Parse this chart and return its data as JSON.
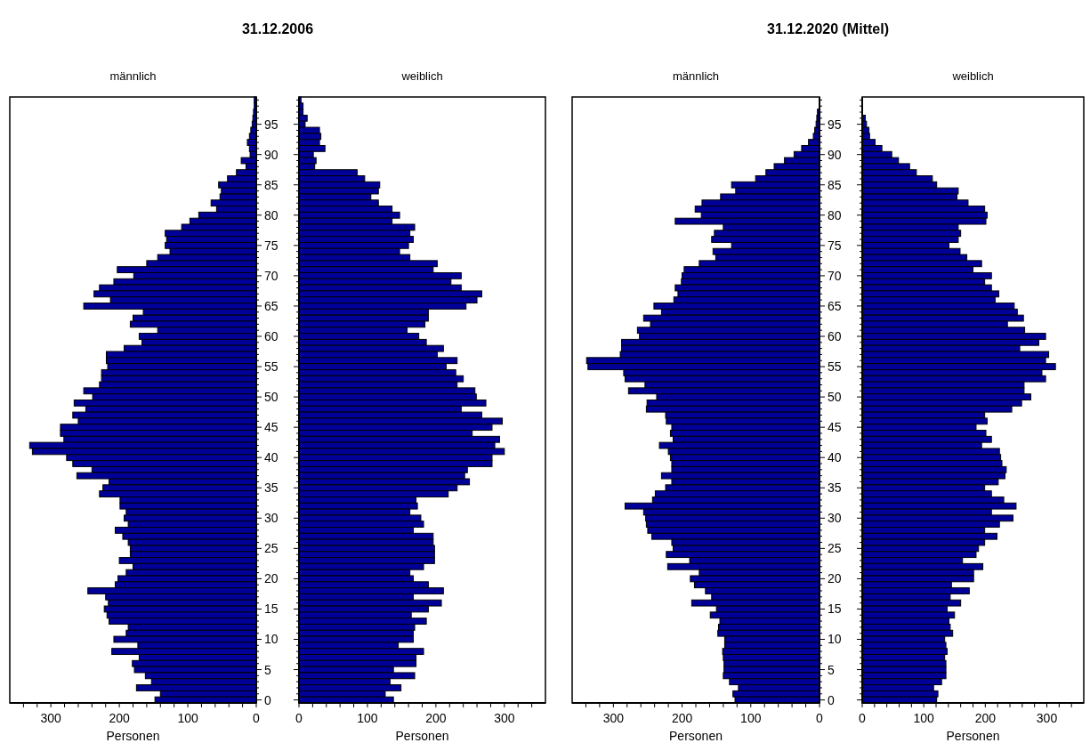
{
  "chart_data": [
    {
      "type": "bar",
      "orientation": "horizontal",
      "title": "31.12.2006",
      "subtitle": "männlich",
      "xlabel": "Personen",
      "color": "#000099",
      "xlim": [
        360,
        0
      ],
      "xticks": [
        0,
        {
          "value": 20,
          "label": null
        },
        {
          "value": 40,
          "label": null
        },
        {
          "value": 60,
          "label": null
        },
        {
          "value": 80,
          "label": null
        },
        100,
        {
          "value": 120,
          "label": null
        },
        {
          "value": 140,
          "label": null
        },
        {
          "value": 160,
          "label": null
        },
        {
          "value": 180,
          "label": null
        },
        200,
        {
          "value": 220,
          "label": null
        },
        {
          "value": 240,
          "label": null
        },
        {
          "value": 260,
          "label": null
        },
        {
          "value": 280,
          "label": null
        },
        300,
        {
          "value": 320,
          "label": null
        },
        {
          "value": 340,
          "label": null
        }
      ],
      "categories": [
        null,
        null,
        null,
        null,
        "95",
        null,
        null,
        null,
        null,
        "90",
        null,
        null,
        null,
        null,
        "85",
        null,
        null,
        null,
        null,
        "80",
        null,
        null,
        null,
        null,
        "75",
        null,
        null,
        null,
        null,
        "70",
        null,
        null,
        null,
        null,
        "65",
        null,
        null,
        null,
        null,
        "60",
        null,
        null,
        null,
        null,
        "55",
        null,
        null,
        null,
        null,
        "50",
        null,
        null,
        null,
        null,
        "45",
        null,
        null,
        null,
        null,
        "40",
        null,
        null,
        null,
        null,
        "35",
        null,
        null,
        null,
        null,
        "30",
        null,
        null,
        null,
        null,
        "25",
        null,
        null,
        null,
        null,
        "20",
        null,
        null,
        null,
        null,
        "15",
        null,
        null,
        null,
        null,
        "10",
        null,
        null,
        null,
        null,
        "5",
        null,
        null,
        null,
        null,
        "0"
      ],
      "values": [
        3,
        3,
        4,
        5,
        6,
        8,
        10,
        13,
        10,
        9,
        22,
        15,
        29,
        42,
        55,
        51,
        53,
        66,
        58,
        84,
        97,
        109,
        133,
        131,
        133,
        126,
        144,
        160,
        203,
        179,
        208,
        229,
        237,
        213,
        252,
        165,
        180,
        184,
        144,
        171,
        167,
        193,
        219,
        219,
        217,
        226,
        226,
        229,
        252,
        239,
        266,
        249,
        268,
        260,
        286,
        286,
        281,
        331,
        327,
        277,
        268,
        240,
        262,
        215,
        224,
        229,
        199,
        199,
        190,
        193,
        187,
        206,
        195,
        187,
        184,
        184,
        200,
        180,
        190,
        202,
        206,
        246,
        220,
        216,
        222,
        218,
        215,
        187,
        190,
        208,
        173,
        211,
        171,
        181,
        178,
        162,
        153,
        175,
        140,
        148
      ]
    },
    {
      "type": "bar",
      "orientation": "horizontal",
      "subtitle": "weiblich",
      "xlabel": "Personen",
      "color": "#000099",
      "xlim": [
        0,
        360
      ],
      "tick_labels": "x",
      "xticks": [
        0,
        {
          "value": 20,
          "label": null
        },
        {
          "value": 40,
          "label": null
        },
        {
          "value": 60,
          "label": null
        },
        {
          "value": 80,
          "label": null
        },
        100,
        {
          "value": 120,
          "label": null
        },
        {
          "value": 140,
          "label": null
        },
        {
          "value": 160,
          "label": null
        },
        {
          "value": 180,
          "label": null
        },
        200,
        {
          "value": 220,
          "label": null
        },
        {
          "value": 240,
          "label": null
        },
        {
          "value": 260,
          "label": null
        },
        {
          "value": 280,
          "label": null
        },
        300,
        {
          "value": 320,
          "label": null
        },
        {
          "value": 340,
          "label": null
        }
      ],
      "categories": [
        null,
        null,
        null,
        null,
        "95",
        null,
        null,
        null,
        null,
        "90",
        null,
        null,
        null,
        null,
        "85",
        null,
        null,
        null,
        null,
        "80",
        null,
        null,
        null,
        null,
        "75",
        null,
        null,
        null,
        null,
        "70",
        null,
        null,
        null,
        null,
        "65",
        null,
        null,
        null,
        null,
        "60",
        null,
        null,
        null,
        null,
        "55",
        null,
        null,
        null,
        null,
        "50",
        null,
        null,
        null,
        null,
        "45",
        null,
        null,
        null,
        null,
        "40",
        null,
        null,
        null,
        null,
        "35",
        null,
        null,
        null,
        null,
        "30",
        null,
        null,
        null,
        null,
        "25",
        null,
        null,
        null,
        null,
        "20",
        null,
        null,
        null,
        null,
        "15",
        null,
        null,
        null,
        null,
        "10",
        null,
        null,
        null,
        null,
        "5",
        null,
        null,
        null,
        null,
        "0"
      ],
      "values": [
        3,
        6,
        6,
        12,
        9,
        30,
        32,
        30,
        38,
        21,
        25,
        23,
        85,
        96,
        118,
        116,
        105,
        116,
        136,
        147,
        136,
        169,
        162,
        167,
        160,
        147,
        162,
        202,
        196,
        237,
        222,
        237,
        267,
        260,
        244,
        189,
        189,
        184,
        158,
        175,
        186,
        211,
        202,
        231,
        215,
        229,
        240,
        231,
        257,
        259,
        273,
        237,
        267,
        297,
        282,
        253,
        293,
        286,
        300,
        282,
        282,
        246,
        242,
        249,
        231,
        218,
        171,
        173,
        162,
        178,
        182,
        167,
        196,
        196,
        198,
        198,
        198,
        182,
        162,
        167,
        189,
        211,
        167,
        208,
        189,
        164,
        186,
        169,
        167,
        167,
        145,
        182,
        171,
        171,
        138,
        169,
        133,
        149,
        126,
        138
      ]
    },
    {
      "type": "bar",
      "orientation": "horizontal",
      "title": "31.12.2020 (Mittel)",
      "subtitle": "männlich",
      "xlabel": "Personen",
      "color": "#000099",
      "xlim": [
        360,
        0
      ],
      "xticks": [
        0,
        {
          "value": 20,
          "label": null
        },
        {
          "value": 40,
          "label": null
        },
        {
          "value": 60,
          "label": null
        },
        {
          "value": 80,
          "label": null
        },
        100,
        {
          "value": 120,
          "label": null
        },
        {
          "value": 140,
          "label": null
        },
        {
          "value": 160,
          "label": null
        },
        {
          "value": 180,
          "label": null
        },
        200,
        {
          "value": 220,
          "label": null
        },
        {
          "value": 240,
          "label": null
        },
        {
          "value": 260,
          "label": null
        },
        {
          "value": 280,
          "label": null
        },
        300,
        {
          "value": 320,
          "label": null
        },
        {
          "value": 340,
          "label": null
        }
      ],
      "categories": [
        null,
        null,
        null,
        null,
        "95",
        null,
        null,
        null,
        null,
        "90",
        null,
        null,
        null,
        null,
        "85",
        null,
        null,
        null,
        null,
        "80",
        null,
        null,
        null,
        null,
        "75",
        null,
        null,
        null,
        null,
        "70",
        null,
        null,
        null,
        null,
        "65",
        null,
        null,
        null,
        null,
        "60",
        null,
        null,
        null,
        null,
        "55",
        null,
        null,
        null,
        null,
        "50",
        null,
        null,
        null,
        null,
        "45",
        null,
        null,
        null,
        null,
        "40",
        null,
        null,
        null,
        null,
        "35",
        null,
        null,
        null,
        null,
        "30",
        null,
        null,
        null,
        null,
        "25",
        null,
        null,
        null,
        null,
        "20",
        null,
        null,
        null,
        null,
        "15",
        null,
        null,
        null,
        null,
        "10",
        null,
        null,
        null,
        null,
        "5",
        null,
        null,
        null,
        null,
        "0"
      ],
      "values": [
        null,
        null,
        3,
        4,
        5,
        7,
        9,
        16,
        26,
        37,
        51,
        66,
        78,
        93,
        128,
        122,
        144,
        171,
        181,
        172,
        210,
        140,
        153,
        157,
        128,
        155,
        151,
        175,
        197,
        200,
        201,
        210,
        206,
        212,
        241,
        230,
        256,
        246,
        265,
        262,
        288,
        288,
        290,
        339,
        337,
        285,
        283,
        254,
        278,
        237,
        251,
        252,
        224,
        223,
        215,
        217,
        213,
        233,
        220,
        217,
        215,
        215,
        230,
        215,
        224,
        239,
        243,
        283,
        256,
        253,
        252,
        250,
        244,
        215,
        213,
        223,
        189,
        221,
        175,
        188,
        182,
        166,
        157,
        186,
        150,
        159,
        145,
        147,
        148,
        138,
        138,
        141,
        140,
        139,
        139,
        140,
        131,
        118,
        126,
        123
      ]
    },
    {
      "type": "bar",
      "orientation": "horizontal",
      "subtitle": "weiblich",
      "xlabel": "Personen",
      "color": "#000099",
      "xlim": [
        0,
        360
      ],
      "tick_labels": "x",
      "xticks": [
        0,
        {
          "value": 20,
          "label": null
        },
        {
          "value": 40,
          "label": null
        },
        {
          "value": 60,
          "label": null
        },
        {
          "value": 80,
          "label": null
        },
        100,
        {
          "value": 120,
          "label": null
        },
        {
          "value": 140,
          "label": null
        },
        {
          "value": 160,
          "label": null
        },
        {
          "value": 180,
          "label": null
        },
        200,
        {
          "value": 220,
          "label": null
        },
        {
          "value": 240,
          "label": null
        },
        {
          "value": 260,
          "label": null
        },
        {
          "value": 280,
          "label": null
        },
        300,
        {
          "value": 320,
          "label": null
        },
        {
          "value": 340,
          "label": null
        }
      ],
      "categories": [
        null,
        null,
        null,
        null,
        "95",
        null,
        null,
        null,
        null,
        "90",
        null,
        null,
        null,
        null,
        "85",
        null,
        null,
        null,
        null,
        "80",
        null,
        null,
        null,
        null,
        "75",
        null,
        null,
        null,
        null,
        "70",
        null,
        null,
        null,
        null,
        "65",
        null,
        null,
        null,
        null,
        "60",
        null,
        null,
        null,
        null,
        "55",
        null,
        null,
        null,
        null,
        "50",
        null,
        null,
        null,
        null,
        "45",
        null,
        null,
        null,
        null,
        "40",
        null,
        null,
        null,
        null,
        "35",
        null,
        null,
        null,
        null,
        "30",
        null,
        null,
        null,
        null,
        "25",
        null,
        null,
        null,
        null,
        "20",
        null,
        null,
        null,
        null,
        "15",
        null,
        null,
        null,
        null,
        "10",
        null,
        null,
        null,
        null,
        "5",
        null,
        null,
        null,
        null,
        "0"
      ],
      "values": [
        null,
        null,
        null,
        5,
        7,
        11,
        12,
        21,
        32,
        48,
        59,
        77,
        88,
        114,
        121,
        156,
        154,
        172,
        199,
        203,
        201,
        156,
        160,
        156,
        141,
        159,
        170,
        194,
        180,
        210,
        199,
        210,
        222,
        216,
        247,
        252,
        262,
        236,
        264,
        298,
        287,
        256,
        303,
        298,
        314,
        292,
        298,
        263,
        263,
        274,
        259,
        243,
        199,
        203,
        185,
        201,
        210,
        194,
        223,
        225,
        227,
        234,
        232,
        221,
        199,
        210,
        230,
        250,
        210,
        245,
        223,
        199,
        219,
        199,
        189,
        185,
        163,
        196,
        181,
        181,
        145,
        174,
        143,
        160,
        138,
        150,
        141,
        143,
        147,
        134,
        136,
        138,
        134,
        136,
        136,
        136,
        129,
        116,
        123,
        121
      ]
    }
  ]
}
